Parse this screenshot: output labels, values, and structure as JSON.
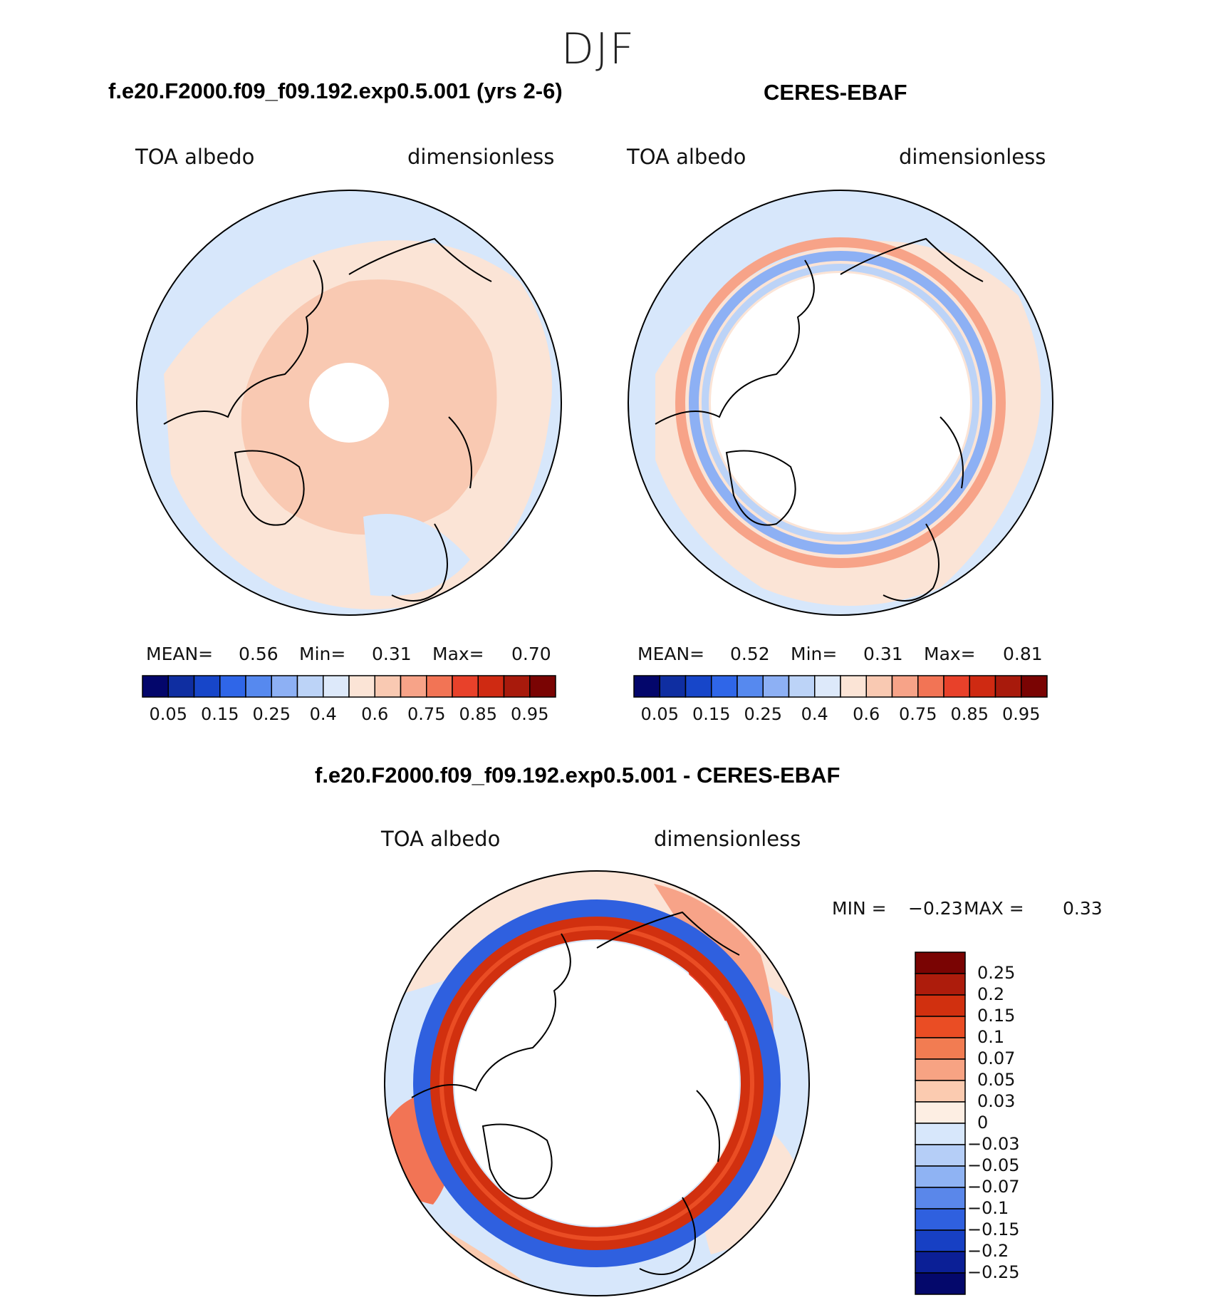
{
  "season": "DJF",
  "panels": [
    {
      "id": "model",
      "title": "f.e20.F2000.f09_f09.192.exp0.5.001 (yrs 2-6)",
      "left_label": "TOA albedo",
      "right_label": "dimensionless",
      "stats": {
        "mean_label": "MEAN=",
        "mean": "0.56",
        "min_label": "Min=",
        "min": "0.31",
        "max_label": "Max=",
        "max": "0.70"
      }
    },
    {
      "id": "obs",
      "title": "CERES-EBAF",
      "left_label": "TOA albedo",
      "right_label": "dimensionless",
      "stats": {
        "mean_label": "MEAN=",
        "mean": "0.52",
        "min_label": "Min=",
        "min": "0.31",
        "max_label": "Max=",
        "max": "0.81"
      }
    },
    {
      "id": "diff",
      "title": "f.e20.F2000.f09_f09.192.exp0.5.001 - CERES-EBAF",
      "left_label": "TOA albedo",
      "right_label": "dimensionless",
      "stats": {
        "min_label": "MIN =",
        "min": "−0.23",
        "max_label": "MAX =",
        "max": "0.33"
      }
    }
  ],
  "chart_data": [
    {
      "type": "heatmap",
      "projection": "north-polar-stereographic",
      "title": "f.e20.F2000.f09_f09.192.exp0.5.001 (yrs 2-6)",
      "variable": "TOA albedo",
      "units": "dimensionless",
      "mean": 0.56,
      "min": 0.31,
      "max": 0.7,
      "colorbar": {
        "orientation": "horizontal",
        "tick_labels": [
          "0.05",
          "0.15",
          "0.25",
          "0.4",
          "0.6",
          "0.75",
          "0.85",
          "0.95"
        ],
        "colors": [
          "#03066b",
          "#0f2ea1",
          "#1746c9",
          "#2f66e8",
          "#5689ef",
          "#8db0f4",
          "#bcd3f7",
          "#dde9fa",
          "#fbe4d6",
          "#f9c9b2",
          "#f7a388",
          "#f27455",
          "#e8412a",
          "#cf2a12",
          "#a81a0c",
          "#7a0403"
        ]
      }
    },
    {
      "type": "heatmap",
      "projection": "north-polar-stereographic",
      "title": "CERES-EBAF",
      "variable": "TOA albedo",
      "units": "dimensionless",
      "mean": 0.52,
      "min": 0.31,
      "max": 0.81,
      "colorbar": {
        "orientation": "horizontal",
        "tick_labels": [
          "0.05",
          "0.15",
          "0.25",
          "0.4",
          "0.6",
          "0.75",
          "0.85",
          "0.95"
        ],
        "colors": [
          "#03066b",
          "#0f2ea1",
          "#1746c9",
          "#2f66e8",
          "#5689ef",
          "#8db0f4",
          "#bcd3f7",
          "#dde9fa",
          "#fbe4d6",
          "#f9c9b2",
          "#f7a388",
          "#f27455",
          "#e8412a",
          "#cf2a12",
          "#a81a0c",
          "#7a0403"
        ]
      }
    },
    {
      "type": "heatmap",
      "projection": "north-polar-stereographic",
      "title": "f.e20.F2000.f09_f09.192.exp0.5.001 - CERES-EBAF",
      "variable": "TOA albedo",
      "units": "dimensionless",
      "min": -0.23,
      "max": 0.33,
      "colorbar": {
        "orientation": "vertical",
        "tick_labels": [
          "0.25",
          "0.2",
          "0.15",
          "0.1",
          "0.07",
          "0.05",
          "0.03",
          "0",
          "−0.03",
          "−0.05",
          "−0.07",
          "−0.1",
          "−0.15",
          "−0.2",
          "−0.25"
        ],
        "colors": [
          "#7a0403",
          "#ad1c0c",
          "#d1300f",
          "#ea4d24",
          "#f27c52",
          "#f7a383",
          "#fbcbb0",
          "#fdeee3",
          "#d7e7fb",
          "#b5cef7",
          "#8fb3f3",
          "#5a87ea",
          "#2f60df",
          "#1740c4",
          "#0b1f96",
          "#04086b"
        ]
      }
    }
  ]
}
